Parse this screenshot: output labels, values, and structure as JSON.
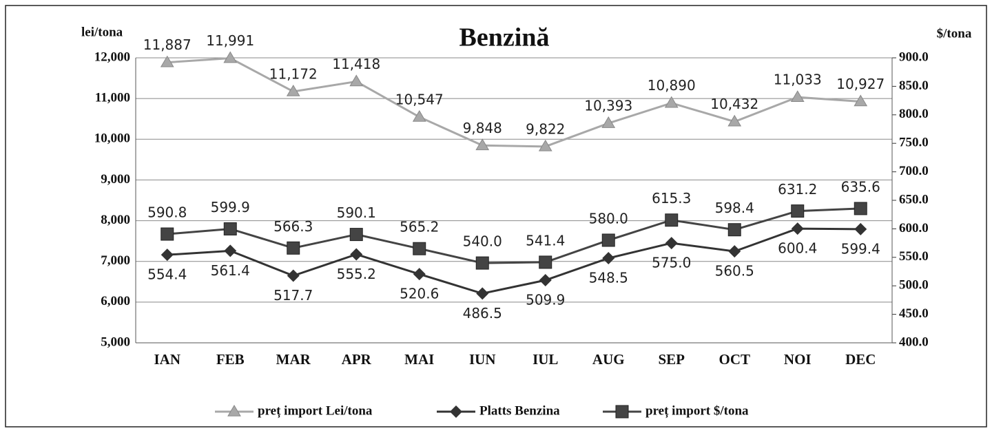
{
  "chart_data": {
    "type": "line",
    "title": "Benzină",
    "y_label": "lei/tona",
    "y2_label": "$/tona",
    "categories": [
      "IAN",
      "FEB",
      "MAR",
      "APR",
      "MAI",
      "IUN",
      "IUL",
      "AUG",
      "SEP",
      "OCT",
      "NOI",
      "DEC"
    ],
    "series": [
      {
        "name": "preț import Lei/tona",
        "color": "#a8a8a8",
        "marker": "triangle",
        "values": [
          11887,
          11991,
          11172,
          11418,
          10547,
          9848,
          9822,
          10393,
          10890,
          10432,
          11033,
          10927
        ],
        "value_labels": [
          "11,887",
          "11,991",
          "11,172",
          "11,418",
          "10,547",
          "9,848",
          "9,822",
          "10,393",
          "10,890",
          "10,432",
          "11,033",
          "10,927"
        ]
      },
      {
        "name": "Platts Benzina",
        "color": "#333333",
        "marker": "diamond",
        "axis": "y2",
        "values": [
          554.4,
          561.4,
          517.7,
          555.2,
          520.6,
          486.5,
          509.9,
          548.5,
          575.0,
          560.5,
          600.4,
          599.4
        ],
        "value_labels": [
          "554.4",
          "561.4",
          "517.7",
          "555.2",
          "520.6",
          "486.5",
          "509.9",
          "548.5",
          "575.0",
          "560.5",
          "600.4",
          "599.4"
        ]
      },
      {
        "name": "preț import $/tona",
        "color": "#444444",
        "marker": "square",
        "axis": "y2",
        "values": [
          590.8,
          599.9,
          566.3,
          590.1,
          565.2,
          540.0,
          541.4,
          580.0,
          615.3,
          598.4,
          631.2,
          635.6
        ],
        "value_labels": [
          "590.8",
          "599.9",
          "566.3",
          "590.1",
          "565.2",
          "540.0",
          "541.4",
          "580.0",
          "615.3",
          "598.4",
          "631.2",
          "635.6"
        ]
      }
    ],
    "ylim": [
      5000,
      12000
    ],
    "yticks": [
      {
        "value": 5000,
        "label": "5,000"
      },
      {
        "value": 6000,
        "label": "6,000"
      },
      {
        "value": 7000,
        "label": "7,000"
      },
      {
        "value": 8000,
        "label": "8,000"
      },
      {
        "value": 9000,
        "label": "9,000"
      },
      {
        "value": 10000,
        "label": "10,000"
      },
      {
        "value": 11000,
        "label": "11,000"
      },
      {
        "value": 12000,
        "label": "12,000"
      }
    ],
    "y2lim": [
      400,
      900
    ],
    "y2ticks": [
      {
        "value": 400,
        "label": "400.0"
      },
      {
        "value": 450,
        "label": "450.0"
      },
      {
        "value": 500,
        "label": "500.0"
      },
      {
        "value": 550,
        "label": "550.0"
      },
      {
        "value": 600,
        "label": "600.0"
      },
      {
        "value": 650,
        "label": "650.0"
      },
      {
        "value": 700,
        "label": "700.0"
      },
      {
        "value": 750,
        "label": "750.0"
      },
      {
        "value": 800,
        "label": "800.0"
      },
      {
        "value": 850,
        "label": "850.0"
      },
      {
        "value": 900,
        "label": "900.0"
      }
    ],
    "grid": true,
    "legend": "bottom"
  }
}
